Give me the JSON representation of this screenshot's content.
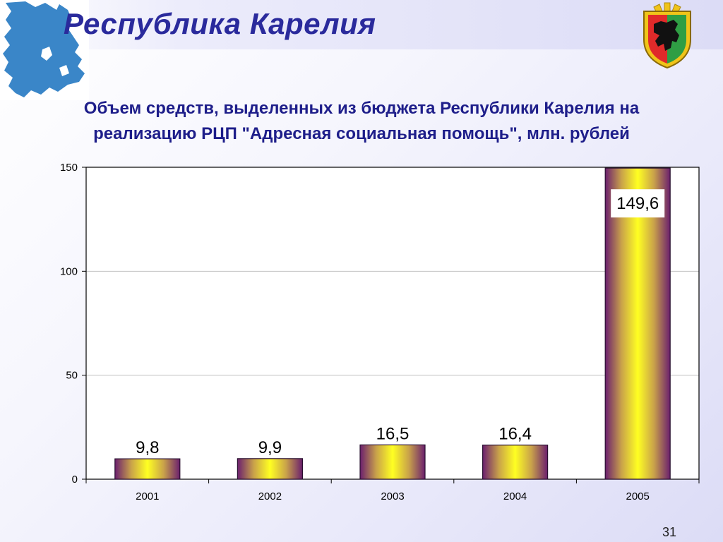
{
  "header": {
    "title": "Республика Карелия",
    "emblem_icon": "karelia-coat-of-arms-icon",
    "map_icon": "karelia-map-icon",
    "title_color": "#2a2a9c"
  },
  "chart_title": {
    "line1": "Объем средств, выделенных из бюджета Республики Карелия на",
    "line2": "реализацию РЦП \"Адресная социальная помощь\", млн. рублей"
  },
  "chart_data": {
    "type": "bar",
    "categories": [
      "2001",
      "2002",
      "2003",
      "2004",
      "2005"
    ],
    "values": [
      9.8,
      9.9,
      16.5,
      16.4,
      149.6
    ],
    "data_labels": [
      "9,8",
      "9,9",
      "16,5",
      "16,4",
      "149,6"
    ],
    "y_ticks": [
      0,
      50,
      100,
      150
    ],
    "ylim": [
      0,
      150
    ],
    "grid": true,
    "legend": "none",
    "bar_gradient": [
      "#6b1f6e",
      "#ffff22"
    ]
  },
  "footer": {
    "slide_number": "31"
  }
}
